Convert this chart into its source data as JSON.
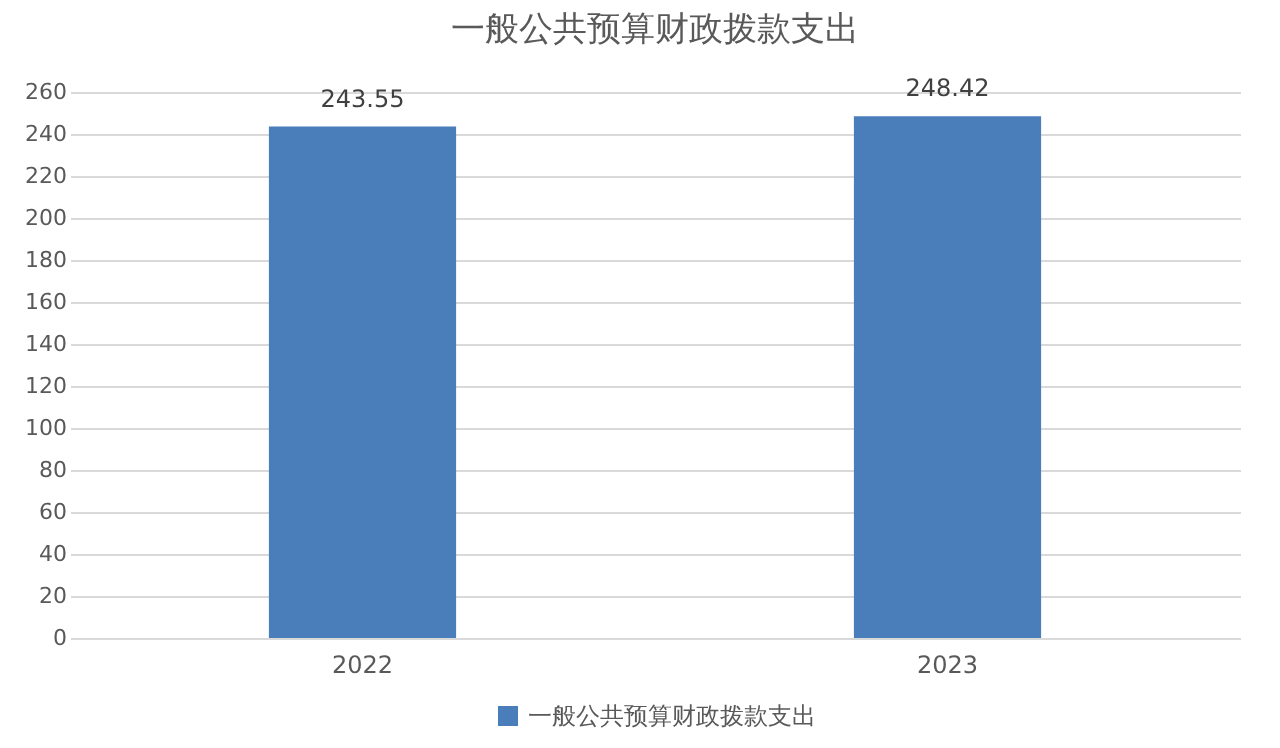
{
  "chart_data": {
    "type": "bar",
    "title": "一般公共预算财政拨款支出",
    "categories": [
      "2022",
      "2023"
    ],
    "series": [
      {
        "name": "一般公共预算财政拨款支出",
        "color": "#4a7ebb",
        "values": [
          243.55,
          248.42
        ]
      }
    ],
    "ylim": [
      0,
      260
    ],
    "yticks": [
      0,
      20,
      40,
      60,
      80,
      100,
      120,
      140,
      160,
      180,
      200,
      220,
      240,
      260
    ],
    "grid": "y",
    "legend": "bottom",
    "data_labels": true
  }
}
